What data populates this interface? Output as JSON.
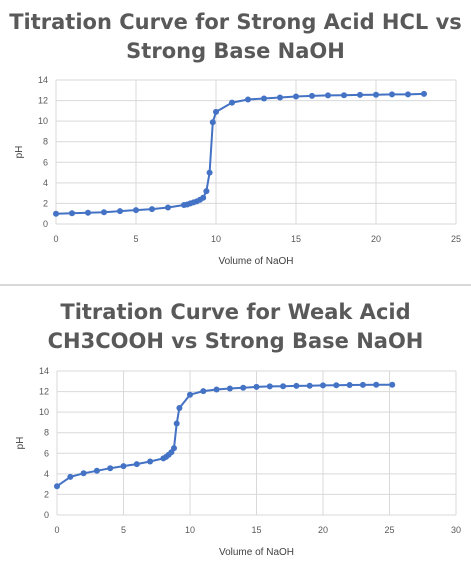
{
  "charts": [
    {
      "title_lines": [
        "Titration Curve for Strong Acid HCL vs",
        "Strong Base NaOH"
      ],
      "chart_data": {
        "type": "scatter",
        "title": "Titration Curve for Strong Acid HCL vs Strong Base NaOH",
        "xlabel": "Volume of NaOH",
        "ylabel": "pH",
        "xlim": [
          0,
          25
        ],
        "ylim": [
          0,
          14
        ],
        "xticks": [
          "0",
          "5",
          "10",
          "15",
          "20",
          "25"
        ],
        "yticks": [
          "0",
          "2",
          "4",
          "6",
          "8",
          "10",
          "12",
          "14"
        ],
        "grid": true,
        "legend": "none",
        "series": [
          {
            "x": [
              0,
              1,
              2,
              3,
              4,
              5,
              6,
              7,
              8,
              8.2,
              8.4,
              8.6,
              8.8,
              9.0,
              9.2,
              9.4,
              9.6,
              9.8,
              10,
              11,
              12,
              13,
              14,
              15,
              16,
              17,
              18,
              19,
              20,
              21,
              22,
              23
            ],
            "y": [
              1.0,
              1.05,
              1.1,
              1.15,
              1.25,
              1.35,
              1.45,
              1.6,
              1.85,
              1.9,
              2.0,
              2.1,
              2.2,
              2.35,
              2.55,
              3.2,
              5.0,
              9.9,
              10.9,
              11.8,
              12.1,
              12.2,
              12.3,
              12.4,
              12.45,
              12.5,
              12.52,
              12.55,
              12.57,
              12.6,
              12.6,
              12.65
            ]
          }
        ]
      }
    },
    {
      "title_lines": [
        "Titration Curve for Weak Acid",
        "CH3COOH vs Strong Base NaOH"
      ],
      "chart_data": {
        "type": "scatter",
        "title": "Titration Curve for Weak Acid CH3COOH vs Strong Base NaOH",
        "xlabel": "Volume of NaOH",
        "ylabel": "pH",
        "xlim": [
          0,
          30
        ],
        "ylim": [
          0,
          14
        ],
        "xticks": [
          "0",
          "5",
          "10",
          "15",
          "20",
          "25",
          "30"
        ],
        "yticks": [
          "0",
          "2",
          "4",
          "6",
          "8",
          "10",
          "12",
          "14"
        ],
        "grid": true,
        "legend": "none",
        "series": [
          {
            "x": [
              0,
              1,
              2,
              3,
              4,
              5,
              6,
              7,
              8,
              8.2,
              8.4,
              8.6,
              8.8,
              9,
              9.2,
              10,
              11,
              12,
              13,
              14,
              15,
              16,
              17,
              18,
              19,
              20,
              21,
              22,
              23,
              24,
              25.2
            ],
            "y": [
              2.8,
              3.7,
              4.05,
              4.3,
              4.55,
              4.75,
              4.95,
              5.2,
              5.5,
              5.65,
              5.85,
              6.1,
              6.5,
              8.9,
              10.4,
              11.7,
              12.05,
              12.2,
              12.3,
              12.38,
              12.45,
              12.5,
              12.52,
              12.55,
              12.57,
              12.6,
              12.62,
              12.64,
              12.65,
              12.66,
              12.67
            ]
          }
        ]
      }
    }
  ],
  "colors": {
    "series": "#4472c4",
    "grid": "#d9d9d9",
    "text": "#595959",
    "title": "#595959"
  }
}
